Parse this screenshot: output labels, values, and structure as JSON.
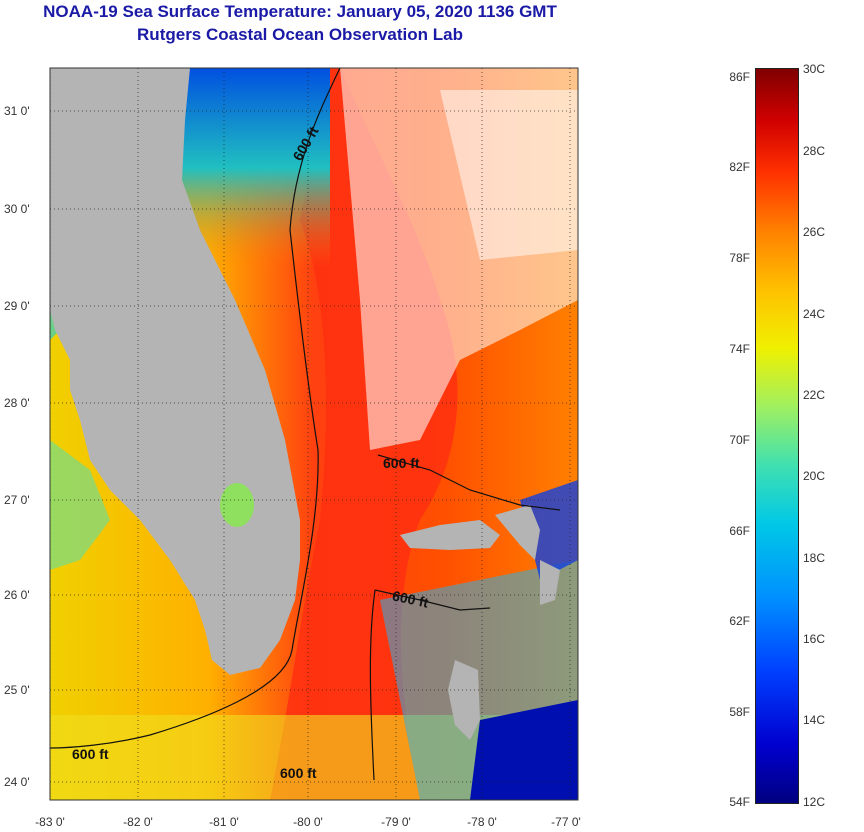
{
  "title": {
    "line1": "NOAA-19 Sea Surface Temperature:  January 05, 2020 1136 GMT",
    "line2": "Rutgers Coastal Ocean Observation Lab"
  },
  "map": {
    "lon_labels": [
      "-83 0'",
      "-82 0'",
      "-81 0'",
      "-80 0'",
      "-79 0'",
      "-78 0'",
      "-77 0'"
    ],
    "lat_labels": [
      "31 0'",
      "30 0'",
      "29 0'",
      "28 0'",
      "27 0'",
      "26 0'",
      "25 0'",
      "24 0'"
    ],
    "contour_labels": [
      "600 ft",
      "600 ft",
      "600 ft",
      "600 ft",
      "600 ft"
    ],
    "colors": {
      "land": "#b4b4b4",
      "cold": "#0000a0",
      "warm": "#e02000",
      "cloud": "#ffffff"
    }
  },
  "colorbar": {
    "fahrenheit": [
      "86F",
      "82F",
      "78F",
      "74F",
      "70F",
      "66F",
      "62F",
      "58F",
      "54F"
    ],
    "celsius": [
      "30C",
      "28C",
      "26C",
      "24C",
      "22C",
      "20C",
      "18C",
      "16C",
      "14C",
      "12C"
    ]
  }
}
